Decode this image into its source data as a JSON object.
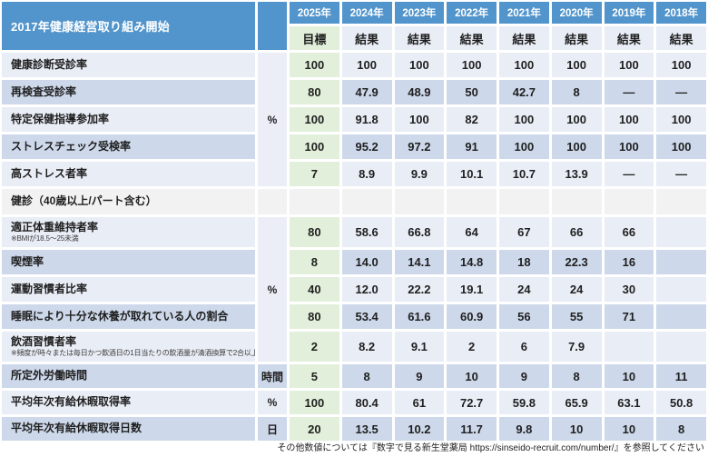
{
  "header": {
    "title": "2017年健康経営取り組み開始",
    "years": [
      "2025年",
      "2024年",
      "2023年",
      "2022年",
      "2021年",
      "2020年",
      "2019年",
      "2018年"
    ],
    "col_types": [
      "目標",
      "結果",
      "結果",
      "結果",
      "結果",
      "結果",
      "結果",
      "結果"
    ]
  },
  "rows": [
    {
      "kind": "data",
      "shade": "light",
      "label": "健康診断受診率",
      "note": "",
      "values": [
        "100",
        "100",
        "100",
        "100",
        "100",
        "100",
        "100",
        "100"
      ]
    },
    {
      "kind": "data",
      "shade": "dark",
      "label": "再検査受診率",
      "note": "",
      "values": [
        "80",
        "47.9",
        "48.9",
        "50",
        "42.7",
        "8",
        "—",
        "—"
      ]
    },
    {
      "kind": "data",
      "shade": "light",
      "label": "特定保健指導参加率",
      "note": "",
      "values": [
        "100",
        "91.8",
        "100",
        "82",
        "100",
        "100",
        "100",
        "100"
      ]
    },
    {
      "kind": "data",
      "shade": "dark",
      "label": "ストレスチェック受検率",
      "note": "",
      "values": [
        "100",
        "95.2",
        "97.2",
        "91",
        "100",
        "100",
        "100",
        "100"
      ]
    },
    {
      "kind": "data",
      "shade": "light",
      "label": "高ストレス者率",
      "note": "",
      "values": [
        "7",
        "8.9",
        "9.9",
        "10.1",
        "10.7",
        "13.9",
        "—",
        "—"
      ]
    },
    {
      "kind": "section",
      "shade": "section",
      "label": "健診（40歳以上/パート含む）",
      "note": "",
      "values": [
        "",
        "",
        "",
        "",
        "",
        "",
        "",
        ""
      ]
    },
    {
      "kind": "data",
      "shade": "light",
      "label": "適正体重維持者率",
      "note": "※BMIが18.5〜25未満",
      "values": [
        "80",
        "58.6",
        "66.8",
        "64",
        "67",
        "66",
        "66",
        ""
      ]
    },
    {
      "kind": "data",
      "shade": "dark",
      "label": "喫煙率",
      "note": "",
      "values": [
        "8",
        "14.0",
        "14.1",
        "14.8",
        "18",
        "22.3",
        "16",
        ""
      ]
    },
    {
      "kind": "data",
      "shade": "light",
      "label": "運動習慣者比率",
      "note": "",
      "values": [
        "40",
        "12.0",
        "22.2",
        "19.1",
        "24",
        "24",
        "30",
        ""
      ]
    },
    {
      "kind": "data",
      "shade": "dark",
      "label": "睡眠により十分な休養が取れている人の割合",
      "note": "",
      "values": [
        "80",
        "53.4",
        "61.6",
        "60.9",
        "56",
        "55",
        "71",
        ""
      ]
    },
    {
      "kind": "data",
      "shade": "light",
      "label": "飲酒習慣者率",
      "note": "※頻度が時々または毎日かつ飲酒日の1日当たりの飲酒量が清酒換算で2合以上の割合",
      "values": [
        "2",
        "8.2",
        "9.1",
        "2",
        "6",
        "7.9",
        "",
        ""
      ]
    },
    {
      "kind": "data",
      "shade": "dark",
      "label": "所定外労働時間",
      "note": "",
      "values": [
        "5",
        "8",
        "9",
        "10",
        "9",
        "8",
        "10",
        "11"
      ]
    },
    {
      "kind": "data",
      "shade": "light",
      "label": "平均年次有給休暇取得率",
      "note": "",
      "values": [
        "100",
        "80.4",
        "61",
        "72.7",
        "59.8",
        "65.9",
        "63.1",
        "50.8"
      ]
    },
    {
      "kind": "data",
      "shade": "dark",
      "label": "平均年次有給休暇取得日数",
      "note": "",
      "values": [
        "20",
        "13.5",
        "10.2",
        "11.7",
        "9.8",
        "10",
        "10",
        "8"
      ]
    }
  ],
  "unit_spans": [
    {
      "unit": "%",
      "row": 0,
      "span": 5,
      "bg": "unit"
    },
    {
      "unit": "",
      "row": 5,
      "span": 1,
      "bg": "section"
    },
    {
      "unit": "%",
      "row": 6,
      "span": 5,
      "bg": "unit"
    },
    {
      "unit": "時間",
      "row": 11,
      "span": 1,
      "bg": "dark"
    },
    {
      "unit": "%",
      "row": 12,
      "span": 1,
      "bg": "light"
    },
    {
      "unit": "日",
      "row": 13,
      "span": 1,
      "bg": "dark"
    }
  ],
  "footer": "その他数値については『数字で見る新生堂薬局 https://sinseido-recruit.com/number/』を参照してください",
  "colors": {
    "header_blue": "#5295cc",
    "target_green": "#e2efda",
    "row_light": "#e9edf6",
    "row_dark": "#cdd8ea",
    "section_gray": "#f2f2f2",
    "unit_bg": "#eceef7"
  }
}
